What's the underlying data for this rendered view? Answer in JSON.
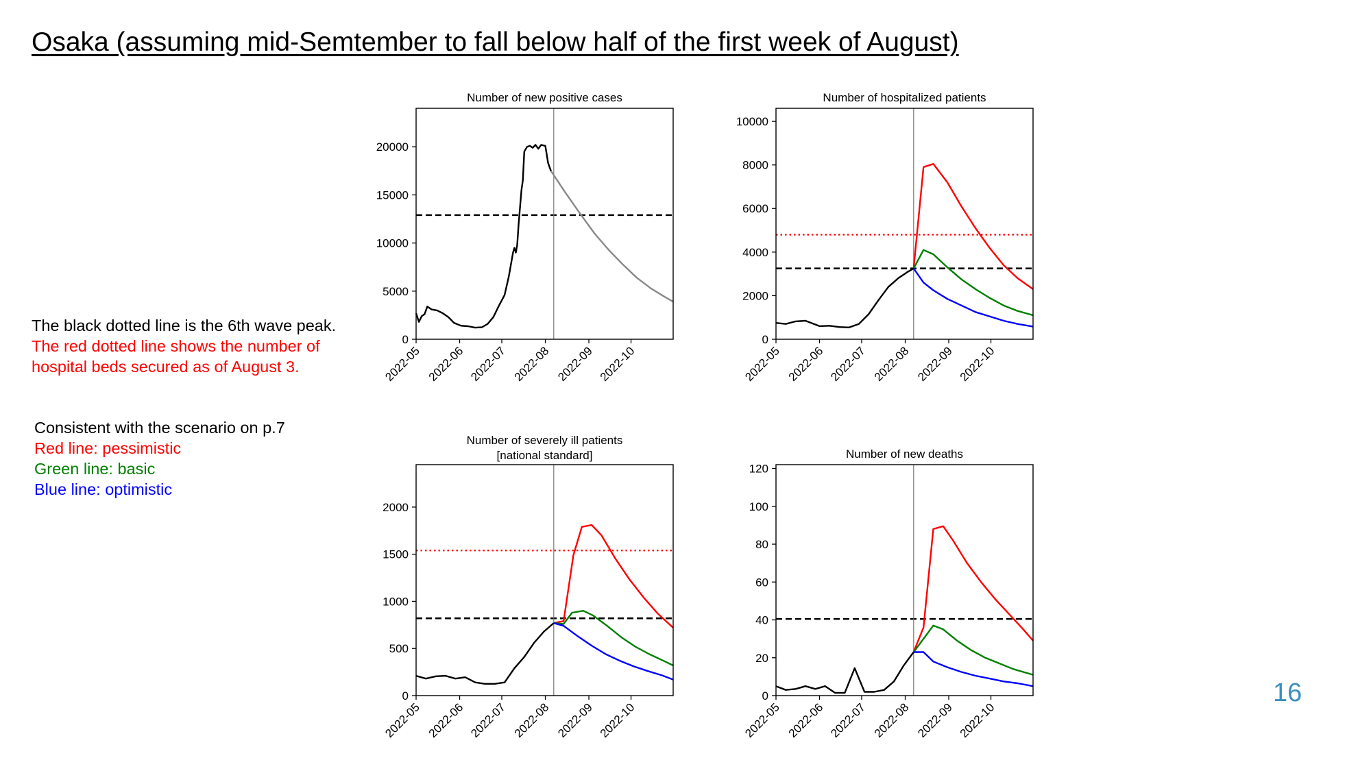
{
  "slide": {
    "title": "Osaka (assuming mid-Semtember to fall below half of the first week of August)",
    "page_number": "16"
  },
  "notes": {
    "black_line": "The black dotted line is the 6th wave peak.",
    "red_line_1": "The red dotted line shows the number of",
    "red_line_2": "hospital beds secured as of August 3.",
    "scenario": "Consistent with the scenario on p.7",
    "red_label": "Red line: pessimistic",
    "green_label": "Green line: basic",
    "blue_label": "Blue line: optimistic"
  },
  "colors": {
    "actual": "#000000",
    "projection": "#888888",
    "pessimistic": "#ff0000",
    "basic": "#008000",
    "optimistic": "#0000ff",
    "sixth_wave_peak": "#000000",
    "hospital_beds": "#ff0000",
    "vline": "#777777",
    "page_number": "#3a8fc1"
  },
  "chart_data": [
    {
      "type": "line",
      "title": "Number of new positive cases",
      "x_ticks": [
        "2022-05",
        "2022-06",
        "2022-07",
        "2022-08",
        "2022-09",
        "2022-10"
      ],
      "x_range": [
        "2022-05-01",
        "2022-10-31"
      ],
      "ylim": [
        0,
        24000
      ],
      "y_ticks": [
        0,
        5000,
        10000,
        15000,
        20000
      ],
      "vline_date": "2022-08-07",
      "hlines": [
        {
          "value": 12900,
          "style": "dashed",
          "color": "#000000"
        }
      ],
      "series": [
        {
          "role": "actual",
          "color": "#000000",
          "points": [
            [
              "2022-05-01",
              2700
            ],
            [
              "2022-05-03",
              1800
            ],
            [
              "2022-05-05",
              2400
            ],
            [
              "2022-05-07",
              2600
            ],
            [
              "2022-05-09",
              3400
            ],
            [
              "2022-05-12",
              3100
            ],
            [
              "2022-05-16",
              3000
            ],
            [
              "2022-05-20",
              2700
            ],
            [
              "2022-05-24",
              2300
            ],
            [
              "2022-05-28",
              1700
            ],
            [
              "2022-06-02",
              1400
            ],
            [
              "2022-06-07",
              1350
            ],
            [
              "2022-06-12",
              1200
            ],
            [
              "2022-06-17",
              1250
            ],
            [
              "2022-06-21",
              1600
            ],
            [
              "2022-06-25",
              2300
            ],
            [
              "2022-06-29",
              3500
            ],
            [
              "2022-07-03",
              4600
            ],
            [
              "2022-07-06",
              6500
            ],
            [
              "2022-07-09",
              9000
            ],
            [
              "2022-07-10",
              9500
            ],
            [
              "2022-07-11",
              9000
            ],
            [
              "2022-07-12",
              9800
            ],
            [
              "2022-07-13",
              12000
            ],
            [
              "2022-07-15",
              15500
            ],
            [
              "2022-07-16",
              16500
            ],
            [
              "2022-07-17",
              19500
            ],
            [
              "2022-07-19",
              20000
            ],
            [
              "2022-07-21",
              20100
            ],
            [
              "2022-07-23",
              19900
            ],
            [
              "2022-07-25",
              20200
            ],
            [
              "2022-07-27",
              19800
            ],
            [
              "2022-07-29",
              20200
            ],
            [
              "2022-08-01",
              20100
            ],
            [
              "2022-08-03",
              18300
            ],
            [
              "2022-08-05",
              17500
            ]
          ]
        },
        {
          "role": "projection",
          "color": "#888888",
          "points": [
            [
              "2022-08-05",
              17500
            ],
            [
              "2022-08-15",
              15300
            ],
            [
              "2022-08-25",
              13200
            ],
            [
              "2022-09-05",
              11000
            ],
            [
              "2022-09-15",
              9300
            ],
            [
              "2022-09-25",
              7800
            ],
            [
              "2022-10-05",
              6400
            ],
            [
              "2022-10-15",
              5300
            ],
            [
              "2022-10-25",
              4400
            ],
            [
              "2022-10-31",
              3900
            ]
          ]
        }
      ]
    },
    {
      "type": "line",
      "title": "Number of hospitalized patients",
      "x_ticks": [
        "2022-05",
        "2022-06",
        "2022-07",
        "2022-08",
        "2022-09",
        "2022-10"
      ],
      "x_range": [
        "2022-05-01",
        "2022-10-31"
      ],
      "ylim": [
        0,
        10600
      ],
      "y_ticks": [
        0,
        2000,
        4000,
        6000,
        8000,
        10000
      ],
      "vline_date": "2022-08-07",
      "hlines": [
        {
          "value": 3250,
          "style": "dashed",
          "color": "#000000"
        },
        {
          "value": 4800,
          "style": "dotted",
          "color": "#ff0000"
        }
      ],
      "series": [
        {
          "role": "actual",
          "color": "#000000",
          "points": [
            [
              "2022-05-01",
              750
            ],
            [
              "2022-05-08",
              700
            ],
            [
              "2022-05-15",
              820
            ],
            [
              "2022-05-22",
              850
            ],
            [
              "2022-06-01",
              600
            ],
            [
              "2022-06-08",
              620
            ],
            [
              "2022-06-15",
              560
            ],
            [
              "2022-06-22",
              540
            ],
            [
              "2022-06-29",
              700
            ],
            [
              "2022-07-06",
              1150
            ],
            [
              "2022-07-13",
              1800
            ],
            [
              "2022-07-20",
              2400
            ],
            [
              "2022-07-27",
              2800
            ],
            [
              "2022-08-03",
              3100
            ],
            [
              "2022-08-07",
              3250
            ]
          ]
        },
        {
          "role": "pessimistic",
          "color": "#ff0000",
          "points": [
            [
              "2022-08-07",
              3250
            ],
            [
              "2022-08-14",
              7900
            ],
            [
              "2022-08-21",
              8050
            ],
            [
              "2022-08-31",
              7200
            ],
            [
              "2022-09-10",
              6100
            ],
            [
              "2022-09-20",
              5100
            ],
            [
              "2022-09-30",
              4200
            ],
            [
              "2022-10-10",
              3400
            ],
            [
              "2022-10-20",
              2800
            ],
            [
              "2022-10-31",
              2300
            ]
          ]
        },
        {
          "role": "basic",
          "color": "#008000",
          "points": [
            [
              "2022-08-07",
              3250
            ],
            [
              "2022-08-14",
              4100
            ],
            [
              "2022-08-21",
              3900
            ],
            [
              "2022-08-31",
              3300
            ],
            [
              "2022-09-10",
              2750
            ],
            [
              "2022-09-20",
              2300
            ],
            [
              "2022-09-30",
              1900
            ],
            [
              "2022-10-10",
              1550
            ],
            [
              "2022-10-20",
              1300
            ],
            [
              "2022-10-31",
              1100
            ]
          ]
        },
        {
          "role": "optimistic",
          "color": "#0000ff",
          "points": [
            [
              "2022-08-07",
              3250
            ],
            [
              "2022-08-14",
              2600
            ],
            [
              "2022-08-21",
              2250
            ],
            [
              "2022-08-31",
              1850
            ],
            [
              "2022-09-10",
              1550
            ],
            [
              "2022-09-20",
              1250
            ],
            [
              "2022-09-30",
              1050
            ],
            [
              "2022-10-10",
              850
            ],
            [
              "2022-10-20",
              700
            ],
            [
              "2022-10-31",
              580
            ]
          ]
        }
      ]
    },
    {
      "type": "line",
      "title": "Number of severely ill patients",
      "subtitle": "[national standard]",
      "x_ticks": [
        "2022-05",
        "2022-06",
        "2022-07",
        "2022-08",
        "2022-09",
        "2022-10"
      ],
      "x_range": [
        "2022-05-01",
        "2022-10-31"
      ],
      "ylim": [
        0,
        2450
      ],
      "y_ticks": [
        0,
        500,
        1000,
        1500,
        2000
      ],
      "vline_date": "2022-08-07",
      "hlines": [
        {
          "value": 820,
          "style": "dashed",
          "color": "#000000"
        },
        {
          "value": 1540,
          "style": "dotted",
          "color": "#ff0000"
        }
      ],
      "series": [
        {
          "role": "actual",
          "color": "#000000",
          "points": [
            [
              "2022-05-01",
              210
            ],
            [
              "2022-05-08",
              180
            ],
            [
              "2022-05-15",
              205
            ],
            [
              "2022-05-22",
              210
            ],
            [
              "2022-05-29",
              180
            ],
            [
              "2022-06-05",
              195
            ],
            [
              "2022-06-12",
              140
            ],
            [
              "2022-06-19",
              125
            ],
            [
              "2022-06-26",
              125
            ],
            [
              "2022-07-03",
              140
            ],
            [
              "2022-07-10",
              290
            ],
            [
              "2022-07-17",
              410
            ],
            [
              "2022-07-24",
              560
            ],
            [
              "2022-07-31",
              680
            ],
            [
              "2022-08-07",
              770
            ]
          ]
        },
        {
          "role": "pessimistic",
          "color": "#ff0000",
          "points": [
            [
              "2022-08-07",
              770
            ],
            [
              "2022-08-14",
              790
            ],
            [
              "2022-08-21",
              1490
            ],
            [
              "2022-08-27",
              1790
            ],
            [
              "2022-09-03",
              1810
            ],
            [
              "2022-09-10",
              1700
            ],
            [
              "2022-09-20",
              1450
            ],
            [
              "2022-09-30",
              1230
            ],
            [
              "2022-10-10",
              1040
            ],
            [
              "2022-10-20",
              870
            ],
            [
              "2022-10-31",
              720
            ]
          ]
        },
        {
          "role": "basic",
          "color": "#008000",
          "points": [
            [
              "2022-08-07",
              770
            ],
            [
              "2022-08-14",
              760
            ],
            [
              "2022-08-20",
              880
            ],
            [
              "2022-08-28",
              900
            ],
            [
              "2022-09-04",
              850
            ],
            [
              "2022-09-14",
              740
            ],
            [
              "2022-09-24",
              620
            ],
            [
              "2022-10-04",
              520
            ],
            [
              "2022-10-14",
              440
            ],
            [
              "2022-10-24",
              370
            ],
            [
              "2022-10-31",
              320
            ]
          ]
        },
        {
          "role": "optimistic",
          "color": "#0000ff",
          "points": [
            [
              "2022-08-07",
              770
            ],
            [
              "2022-08-14",
              740
            ],
            [
              "2022-08-24",
              630
            ],
            [
              "2022-09-03",
              530
            ],
            [
              "2022-09-13",
              440
            ],
            [
              "2022-09-23",
              370
            ],
            [
              "2022-10-03",
              310
            ],
            [
              "2022-10-13",
              260
            ],
            [
              "2022-10-23",
              215
            ],
            [
              "2022-10-31",
              170
            ]
          ]
        }
      ]
    },
    {
      "type": "line",
      "title": "Number of new deaths",
      "x_ticks": [
        "2022-05",
        "2022-06",
        "2022-07",
        "2022-08",
        "2022-09",
        "2022-10"
      ],
      "x_range": [
        "2022-05-01",
        "2022-10-31"
      ],
      "ylim": [
        0,
        122
      ],
      "y_ticks": [
        0,
        20,
        40,
        60,
        80,
        100,
        120
      ],
      "vline_date": "2022-08-07",
      "hlines": [
        {
          "value": 40.5,
          "style": "dashed",
          "color": "#000000"
        }
      ],
      "series": [
        {
          "role": "actual",
          "color": "#000000",
          "points": [
            [
              "2022-05-01",
              5
            ],
            [
              "2022-05-08",
              3
            ],
            [
              "2022-05-15",
              3.5
            ],
            [
              "2022-05-22",
              5
            ],
            [
              "2022-05-29",
              3.5
            ],
            [
              "2022-06-05",
              5
            ],
            [
              "2022-06-12",
              1.5
            ],
            [
              "2022-06-19",
              1.5
            ],
            [
              "2022-06-26",
              14.5
            ],
            [
              "2022-07-03",
              2
            ],
            [
              "2022-07-10",
              2
            ],
            [
              "2022-07-17",
              3
            ],
            [
              "2022-07-24",
              7.5
            ],
            [
              "2022-07-31",
              16
            ],
            [
              "2022-08-07",
              23
            ]
          ]
        },
        {
          "role": "pessimistic",
          "color": "#ff0000",
          "points": [
            [
              "2022-08-07",
              23
            ],
            [
              "2022-08-14",
              36
            ],
            [
              "2022-08-21",
              88
            ],
            [
              "2022-08-28",
              89.5
            ],
            [
              "2022-09-04",
              82
            ],
            [
              "2022-09-14",
              70
            ],
            [
              "2022-09-24",
              60
            ],
            [
              "2022-10-04",
              51
            ],
            [
              "2022-10-14",
              43
            ],
            [
              "2022-10-24",
              35
            ],
            [
              "2022-10-31",
              29
            ]
          ]
        },
        {
          "role": "basic",
          "color": "#008000",
          "points": [
            [
              "2022-08-07",
              23
            ],
            [
              "2022-08-21",
              37
            ],
            [
              "2022-08-28",
              35
            ],
            [
              "2022-09-07",
              29
            ],
            [
              "2022-09-17",
              24
            ],
            [
              "2022-09-27",
              20
            ],
            [
              "2022-10-07",
              17
            ],
            [
              "2022-10-17",
              14
            ],
            [
              "2022-10-31",
              11
            ]
          ]
        },
        {
          "role": "optimistic",
          "color": "#0000ff",
          "points": [
            [
              "2022-08-07",
              23
            ],
            [
              "2022-08-14",
              23
            ],
            [
              "2022-08-21",
              18
            ],
            [
              "2022-08-31",
              15
            ],
            [
              "2022-09-10",
              12.5
            ],
            [
              "2022-09-20",
              10.5
            ],
            [
              "2022-09-30",
              9
            ],
            [
              "2022-10-10",
              7.5
            ],
            [
              "2022-10-20",
              6.5
            ],
            [
              "2022-10-31",
              5
            ]
          ]
        }
      ]
    }
  ]
}
